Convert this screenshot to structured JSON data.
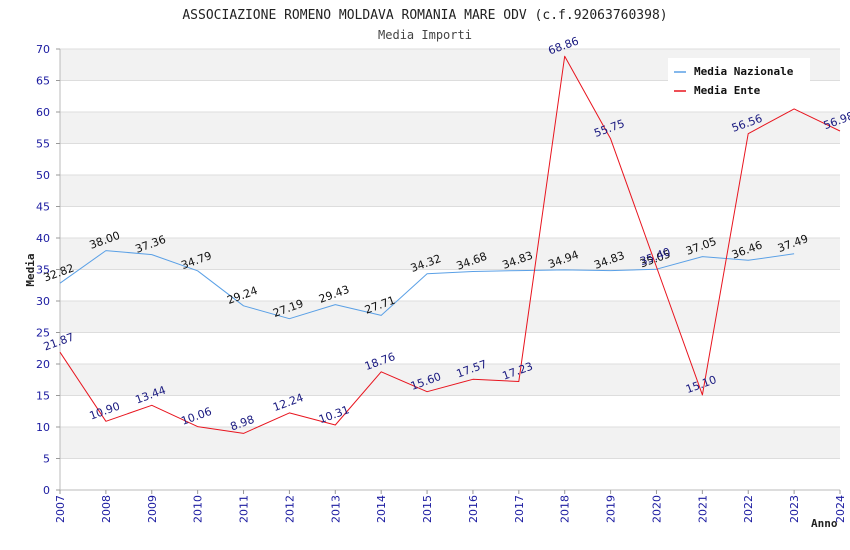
{
  "chart_data": {
    "type": "line",
    "title": "ASSOCIAZIONE ROMENO MOLDAVA ROMANIA MARE ODV (c.f.92063760398)",
    "subtitle": "Media Importi",
    "xlabel": "Anno",
    "ylabel": "Media",
    "ylim": [
      0,
      70
    ],
    "yticks": [
      0,
      5,
      10,
      15,
      20,
      25,
      30,
      35,
      40,
      45,
      50,
      55,
      60,
      65,
      70
    ],
    "categories": [
      "2007",
      "2008",
      "2009",
      "2010",
      "2011",
      "2012",
      "2013",
      "2014",
      "2015",
      "2016",
      "2017",
      "2018",
      "2019",
      "2020",
      "2021",
      "2022",
      "2023",
      "2024"
    ],
    "grid": true,
    "legend_position": "top-right",
    "series": [
      {
        "name": "Media Nazionale",
        "color": "#5aa0e6",
        "values": [
          32.82,
          38.0,
          37.36,
          34.79,
          29.24,
          27.19,
          29.43,
          27.71,
          34.32,
          34.68,
          34.83,
          34.94,
          34.83,
          35.05,
          37.05,
          36.46,
          37.49,
          null
        ],
        "labels": [
          "32.82",
          "38.00",
          "37.36",
          "34.79",
          "29.24",
          "27.19",
          "29.43",
          "27.71",
          "34.32",
          "34.68",
          "34.83",
          "34.94",
          "34.83",
          "35.05",
          "37.05",
          "36.46",
          "37.49",
          ""
        ]
      },
      {
        "name": "Media Ente",
        "color": "#e8141e",
        "values": [
          21.87,
          10.9,
          13.44,
          10.06,
          8.98,
          12.24,
          10.31,
          18.76,
          15.6,
          17.57,
          17.23,
          68.86,
          55.75,
          35.4,
          15.1,
          56.56,
          60.5,
          56.98
        ],
        "labels": [
          "21.87",
          "10.90",
          "13.44",
          "10.06",
          "8.98",
          "12.24",
          "10.31",
          "18.76",
          "15.60",
          "17.57",
          "17.23",
          "68.86",
          "55.75",
          "35.40",
          "15.10",
          "56.56",
          "",
          "56.98"
        ]
      }
    ]
  }
}
